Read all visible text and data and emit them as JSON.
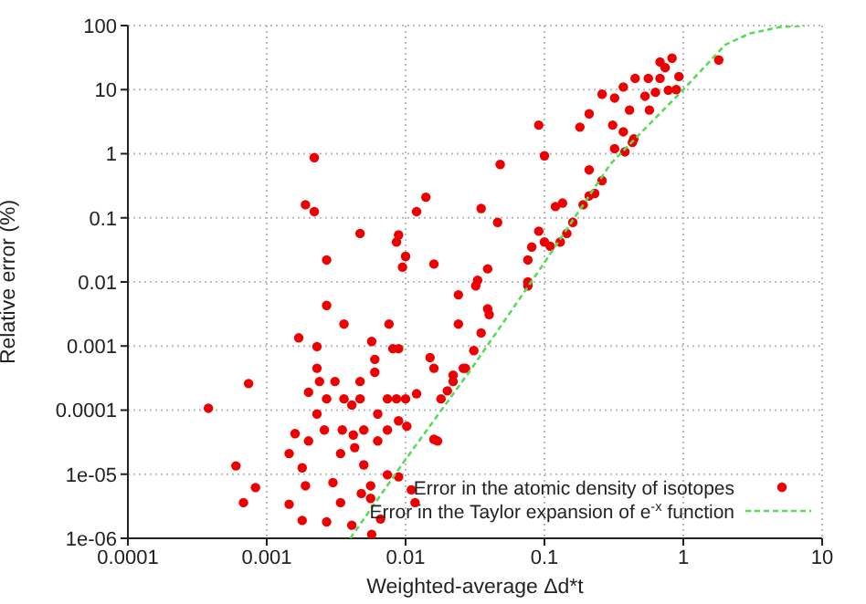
{
  "chart_data": {
    "type": "scatter",
    "xlabel": "Weighted-average Δd*t",
    "ylabel": "Relative error (%)",
    "log": "xy",
    "grid": true,
    "legend": "bottom right",
    "marker": "circle",
    "xlim": [
      0.0001,
      10
    ],
    "xticks": [
      0.0001,
      0.001,
      0.01,
      0.1,
      1,
      10
    ],
    "ylim": [
      1e-06,
      100
    ],
    "yticks": [
      {
        "value": 1e-06,
        "label": "1e-06"
      },
      {
        "value": 1e-05,
        "label": "1e-05"
      },
      0.0001,
      0.001,
      0.01,
      0.1,
      1,
      10,
      100
    ],
    "series": [
      {
        "name": "Error in the atomic density of isotopes",
        "color": "#ee0000",
        "x": [
          0.0022,
          0.0019,
          0.0022,
          0.0047,
          0.0027,
          0.0089,
          0.0086,
          0.01,
          0.0095,
          0.012,
          0.014,
          0.016,
          0.032,
          0.035,
          0.046,
          0.048,
          0.039,
          0.076,
          0.081,
          0.091,
          0.091,
          0.1,
          0.1,
          0.11,
          0.12,
          0.135,
          0.13,
          0.145,
          0.16,
          0.19,
          0.21,
          0.23,
          0.18,
          0.21,
          0.21,
          0.26,
          0.31,
          0.26,
          0.32,
          0.37,
          0.37,
          0.41,
          0.32,
          0.38,
          0.43,
          0.44,
          0.45,
          0.56,
          0.53,
          0.57,
          0.63,
          0.68,
          0.68,
          0.74,
          0.83,
          0.78,
          0.89,
          0.93,
          1.8,
          0.00038,
          0.00074,
          0.0006,
          0.00083,
          0.00068,
          0.00145,
          0.0018,
          0.0017,
          0.0023,
          0.0027,
          0.0036,
          0.00145,
          0.0016,
          0.0018,
          0.0019,
          0.002,
          0.002,
          0.0023,
          0.0023,
          0.0024,
          0.0026,
          0.0027,
          0.003,
          0.0031,
          0.0034,
          0.0034,
          0.0036,
          0.0035,
          0.0041,
          0.0042,
          0.0043,
          0.0047,
          0.0047,
          0.005,
          0.005,
          0.0048,
          0.0057,
          0.006,
          0.006,
          0.0063,
          0.0063,
          0.0056,
          0.0056,
          0.0066,
          0.0074,
          0.0076,
          0.0074,
          0.0074,
          0.0081,
          0.0089,
          0.0086,
          0.0089,
          0.0089,
          0.01,
          0.0102,
          0.011,
          0.0117,
          0.012,
          0.015,
          0.016,
          0.016,
          0.024,
          0.024,
          0.026,
          0.022,
          0.031,
          0.0057,
          0.0041,
          0.0027,
          0.076,
          0.076,
          0.033,
          0.039,
          0.04,
          0.035,
          0.027,
          0.022,
          0.02,
          0.018,
          0.017
        ],
        "values": [
          0.87,
          0.16,
          0.125,
          0.057,
          0.022,
          0.054,
          0.042,
          0.025,
          0.017,
          0.125,
          0.21,
          0.019,
          0.0087,
          0.14,
          0.085,
          0.68,
          0.016,
          0.022,
          0.035,
          0.062,
          2.8,
          0.93,
          0.042,
          0.036,
          0.15,
          0.17,
          0.042,
          0.057,
          0.085,
          0.16,
          0.22,
          0.24,
          2.6,
          4.2,
          0.56,
          0.38,
          2.8,
          8.5,
          7.4,
          11,
          2.2,
          4.8,
          1.2,
          1.07,
          1.5,
          1.7,
          15,
          15,
          7.9,
          4.8,
          9.1,
          15,
          27,
          22,
          31,
          9.8,
          10,
          16,
          29,
          0.000107,
          0.00026,
          1.35e-05,
          6.2e-06,
          3.6e-06,
          3.4e-06,
          1.9e-06,
          0.00134,
          0.00098,
          0.0043,
          0.0022,
          2.1e-05,
          4.3e-05,
          1.26e-05,
          6.6e-06,
          0.00019,
          3.3e-05,
          8.7e-05,
          0.00045,
          0.00028,
          4.9e-05,
          0.00015,
          7.4e-06,
          0.00028,
          2.1e-05,
          3.6e-06,
          0.00015,
          4.9e-05,
          0.00012,
          4.1e-05,
          2.6e-05,
          0.00028,
          0.00015,
          4.9e-05,
          1.4e-05,
          5e-06,
          0.00118,
          0.00062,
          0.00039,
          8.7e-05,
          3.3e-05,
          6.6e-06,
          4.2e-06,
          2e-06,
          0.00015,
          0.0022,
          4.9e-05,
          9.8e-06,
          0.00091,
          0.00091,
          0.00015,
          6.8e-05,
          9.1e-06,
          0.00015,
          5.6e-05,
          5.7e-06,
          3.6e-06,
          0.00018,
          0.00066,
          0.00045,
          3.5e-05,
          0.0063,
          0.0022,
          0.00045,
          0.00028,
          0.00085,
          1.15e-06,
          1.6e-06,
          1.8e-06,
          0.01,
          0.0087,
          0.0106,
          0.0038,
          0.0031,
          0.0016,
          0.00045,
          0.00035,
          0.0002,
          0.00015,
          3.3e-05
        ]
      },
      {
        "name": "Error in the Taylor expansion of e$^{-x}$ function",
        "type": "line",
        "line_style": "dashed",
        "marker": "none",
        "color": "#55dd55",
        "x": [
          0.004,
          0.01,
          0.03,
          0.1,
          0.3,
          1,
          2,
          3,
          5,
          7.5
        ],
        "values": [
          1e-06,
          1.7e-05,
          0.00045,
          0.02,
          0.7,
          10,
          50,
          75,
          95,
          100
        ]
      }
    ]
  }
}
